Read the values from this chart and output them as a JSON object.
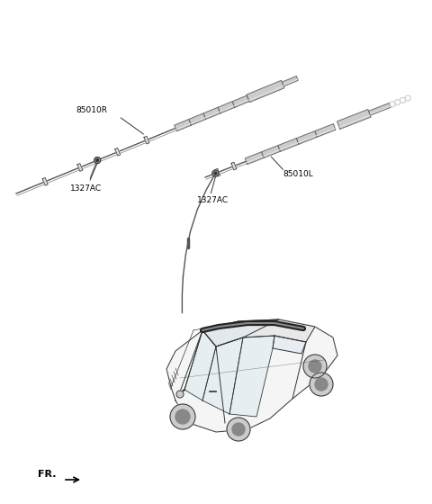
{
  "bg_color": "#ffffff",
  "line_color": "#333333",
  "label_color": "#000000",
  "label_fontsize": 6.5,
  "part_85010R_label": "85010R",
  "part_85010L_label": "85010L",
  "part_1327AC_left_label": "1327AC",
  "part_1327AC_right_label": "1327AC",
  "fr_label": "FR."
}
